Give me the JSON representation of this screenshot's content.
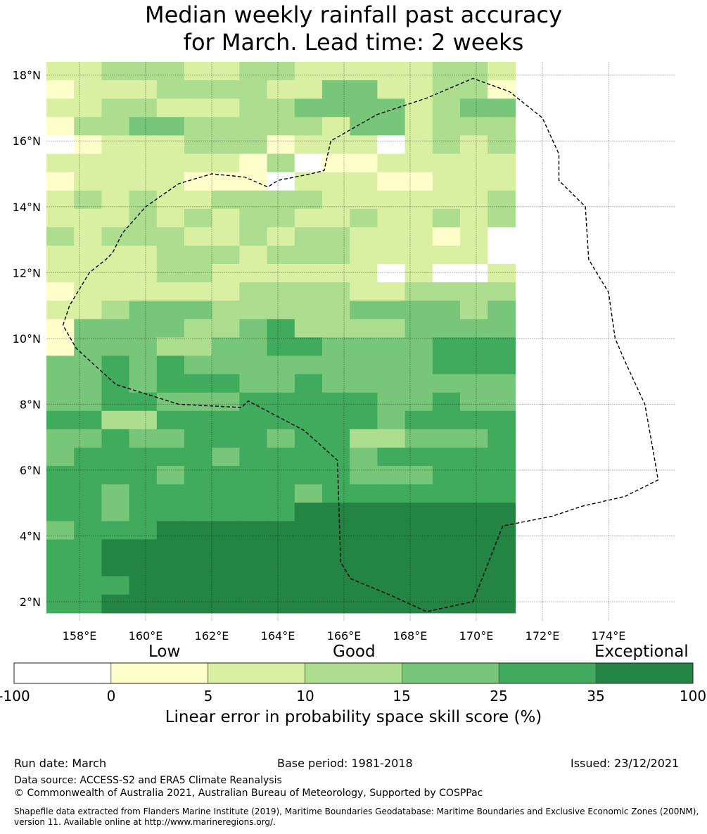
{
  "title": {
    "line1": "Median weekly rainfall past accuracy",
    "line2": "for March. Lead time: 2 weeks"
  },
  "map": {
    "lon_range": [
      157,
      176
    ],
    "lat_range": [
      1.4,
      18.4
    ],
    "cell_lon_deg": 0.834,
    "cell_lat_deg": 0.558,
    "lon_ticks": [
      "158°E",
      "160°E",
      "162°E",
      "164°E",
      "166°E",
      "168°E",
      "170°E",
      "172°E",
      "174°E"
    ],
    "lat_ticks": [
      "2°N",
      "4°N",
      "6°N",
      "8°N",
      "10°N",
      "12°N",
      "14°N",
      "16°N",
      "18°N"
    ],
    "rows_top_to_bottom": [
      "22333223322222332",
      "12223333224422331",
      "22332223344442344",
      "13344333332442333",
      "01222333122202323",
      "22222221301122222",
      "12222111022211222",
      "23232233332222223",
      "22232323322322323",
      "32333223233222120",
      "22223332333222220",
      "22223322222202002",
      "12222223333223333",
      "22344433333444434",
      "14444334533334444",
      "14443344554444555",
      "44545444444444555",
      "44545554454444444",
      "44554445555544544",
      "55335555555545555",
      "44544555455334445",
      "45555545555455555",
      "55554555555444555",
      "55455555545555555",
      "55455555566666666",
      "45556666666666666",
      "55666666666666666",
      "55666666666666666",
      "55566666666666666",
      "55666666666666666"
    ],
    "palette": [
      "#ffffff",
      "#ffffcc",
      "#d9f0a3",
      "#addd8e",
      "#78c679",
      "#41ab5d",
      "#238443"
    ],
    "eez_boundary": [
      [
        157.5,
        10.4
      ],
      [
        157.7,
        11.0
      ],
      [
        158.3,
        12.0
      ],
      [
        158.8,
        12.4
      ],
      [
        159.0,
        12.6
      ],
      [
        159.3,
        13.2
      ],
      [
        160.0,
        14.0
      ],
      [
        161.0,
        14.7
      ],
      [
        162.0,
        15.0
      ],
      [
        163.0,
        14.9
      ],
      [
        163.7,
        14.6
      ],
      [
        164.0,
        14.8
      ],
      [
        165.0,
        15.0
      ],
      [
        165.4,
        15.1
      ],
      [
        165.6,
        16.0
      ],
      [
        167.0,
        16.8
      ],
      [
        168.5,
        17.3
      ],
      [
        169.9,
        17.9
      ],
      [
        171.0,
        17.5
      ],
      [
        172.0,
        16.7
      ],
      [
        172.5,
        15.6
      ],
      [
        172.5,
        14.8
      ],
      [
        173.3,
        14.0
      ],
      [
        173.4,
        12.4
      ],
      [
        174.0,
        11.4
      ],
      [
        174.2,
        10.0
      ],
      [
        174.5,
        9.3
      ],
      [
        175.1,
        8.0
      ],
      [
        175.4,
        6.3
      ],
      [
        175.5,
        5.7
      ],
      [
        174.5,
        5.2
      ],
      [
        173.2,
        4.9
      ],
      [
        172.3,
        4.6
      ],
      [
        170.8,
        4.3
      ],
      [
        169.9,
        2.0
      ],
      [
        168.5,
        1.7
      ],
      [
        167.4,
        2.2
      ],
      [
        166.2,
        2.7
      ],
      [
        165.9,
        3.2
      ],
      [
        165.8,
        6.3
      ],
      [
        164.8,
        7.2
      ],
      [
        163.1,
        8.1
      ],
      [
        162.9,
        7.9
      ],
      [
        161.0,
        8.0
      ],
      [
        159.1,
        8.6
      ],
      [
        157.9,
        9.7
      ],
      [
        157.5,
        10.4
      ]
    ]
  },
  "colorbar": {
    "scale_words": [
      "Low",
      "Good",
      "Exceptional"
    ],
    "tick_labels": [
      "-100",
      "0",
      "5",
      "10",
      "15",
      "25",
      "35",
      "100"
    ],
    "title": "Linear error in probability space skill score (%)"
  },
  "footer": {
    "run_date": "Run date: March",
    "base_period": "Base period: 1981-2018",
    "issued": "Issued: 23/12/2021",
    "data_source": "Data source: ACCESS-S2 and ERA5 Climate Reanalysis",
    "copyright": "© Commonwealth of Australia 2021, Australian Bureau of Meteorology, Supported by COSPPac",
    "shapefile": "Shapefile data extracted from Flanders Marine Institute (2019), Maritime Boundaries Geodatabase: Maritime Boundaries and Exclusive Economic Zones (200NM), version 11. Available online at http://www.marineregions.org/."
  }
}
